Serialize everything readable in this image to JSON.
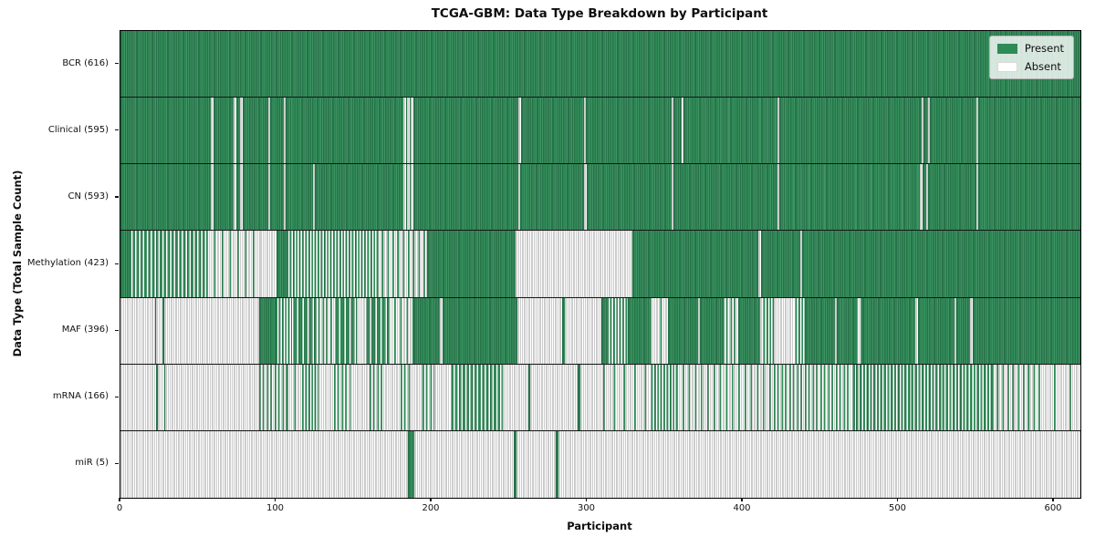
{
  "title": "TCGA-GBM: Data Type Breakdown by Participant",
  "axes": {
    "x_label": "Participant",
    "y_label": "Data Type (Total Sample Count)",
    "x_ticks": [
      0,
      100,
      200,
      300,
      400,
      500,
      600
    ]
  },
  "legend": {
    "items": [
      {
        "label": "Present",
        "color": "#2e8b57"
      },
      {
        "label": "Absent",
        "color": "#ffffff"
      }
    ]
  },
  "colors": {
    "present": "#2e8b57",
    "present_edge": "#1e5e3b",
    "present_light": "#4f9d72",
    "absent": "#ffffff",
    "absent_edge": "#9a9a9a",
    "row_divider": "#161616"
  },
  "chart_data": {
    "type": "heatmap",
    "title": "TCGA-GBM: Data Type Breakdown by Participant",
    "xlabel": "Participant",
    "ylabel": "Data Type (Total Sample Count)",
    "x_range": [
      0,
      617
    ],
    "legend_entries": [
      "Present",
      "Absent"
    ],
    "legend_position": "upper right",
    "grid": false,
    "note": "segments are [start_participant, end_participant, type]; type is present, absent, or mixNN where NN is approx percent present within the span",
    "rows": [
      {
        "name": "BCR",
        "label": "BCR (616)",
        "total": 616,
        "segments": [
          [
            0,
            617,
            "present"
          ]
        ]
      },
      {
        "name": "Clinical",
        "label": "Clinical (595)",
        "total": 595,
        "segments": [
          [
            0,
            58,
            "present"
          ],
          [
            58,
            59.8,
            "absent"
          ],
          [
            59.8,
            73,
            "present"
          ],
          [
            73,
            74.3,
            "absent"
          ],
          [
            74.3,
            77,
            "present"
          ],
          [
            77,
            78.3,
            "absent"
          ],
          [
            78.3,
            95,
            "present"
          ],
          [
            95,
            96.3,
            "absent"
          ],
          [
            96.3,
            105,
            "present"
          ],
          [
            105,
            106.3,
            "absent"
          ],
          [
            106.3,
            182,
            "present"
          ],
          [
            182,
            183.3,
            "absent"
          ],
          [
            183.3,
            184.3,
            "present"
          ],
          [
            184.3,
            185.8,
            "absent"
          ],
          [
            185.8,
            186.8,
            "present"
          ],
          [
            186.8,
            188.3,
            "absent"
          ],
          [
            188.3,
            256,
            "present"
          ],
          [
            256,
            257.3,
            "absent"
          ],
          [
            257.3,
            298,
            "present"
          ],
          [
            298,
            299,
            "absent"
          ],
          [
            299,
            354,
            "present"
          ],
          [
            354,
            355.3,
            "absent"
          ],
          [
            355.3,
            361,
            "present"
          ],
          [
            361,
            362,
            "absent"
          ],
          [
            362,
            422,
            "present"
          ],
          [
            422,
            423.3,
            "absent"
          ],
          [
            423.3,
            515,
            "present"
          ],
          [
            515,
            516.3,
            "absent"
          ],
          [
            516.3,
            519,
            "present"
          ],
          [
            519,
            520.3,
            "absent"
          ],
          [
            520.3,
            550,
            "present"
          ],
          [
            550,
            551.3,
            "absent"
          ],
          [
            551.3,
            617,
            "present"
          ]
        ]
      },
      {
        "name": "CN",
        "label": "CN (593)",
        "total": 593,
        "segments": [
          [
            0,
            58,
            "present"
          ],
          [
            58,
            59.8,
            "absent"
          ],
          [
            59.8,
            73,
            "present"
          ],
          [
            73,
            74.3,
            "absent"
          ],
          [
            74.3,
            77,
            "present"
          ],
          [
            77,
            78.3,
            "absent"
          ],
          [
            78.3,
            95,
            "present"
          ],
          [
            95,
            96.3,
            "absent"
          ],
          [
            96.3,
            105,
            "present"
          ],
          [
            105,
            106.3,
            "absent"
          ],
          [
            106.3,
            124,
            "present"
          ],
          [
            124,
            125,
            "absent"
          ],
          [
            125,
            182,
            "present"
          ],
          [
            182,
            183.3,
            "absent"
          ],
          [
            183.3,
            184.3,
            "present"
          ],
          [
            184.3,
            185.8,
            "absent"
          ],
          [
            185.8,
            186.8,
            "present"
          ],
          [
            186.8,
            188.3,
            "absent"
          ],
          [
            188.3,
            256,
            "present"
          ],
          [
            256,
            257,
            "absent"
          ],
          [
            257,
            298,
            "present"
          ],
          [
            298,
            299.5,
            "absent"
          ],
          [
            299.5,
            354,
            "present"
          ],
          [
            354,
            355.3,
            "absent"
          ],
          [
            355.3,
            422,
            "present"
          ],
          [
            422,
            423.3,
            "absent"
          ],
          [
            423.3,
            514,
            "present"
          ],
          [
            514,
            515.3,
            "absent"
          ],
          [
            515.3,
            518,
            "present"
          ],
          [
            518,
            519.3,
            "absent"
          ],
          [
            519.3,
            550,
            "present"
          ],
          [
            550,
            551.3,
            "absent"
          ],
          [
            551.3,
            617,
            "present"
          ]
        ]
      },
      {
        "name": "Methylation",
        "label": "Methylation (423)",
        "total": 423,
        "segments": [
          [
            0,
            7,
            "present"
          ],
          [
            7,
            55,
            "mix60"
          ],
          [
            55,
            90,
            "mix20"
          ],
          [
            90,
            100,
            "absent"
          ],
          [
            100,
            108,
            "present"
          ],
          [
            108,
            165,
            "mix50"
          ],
          [
            165,
            197,
            "mix30"
          ],
          [
            197,
            254,
            "present"
          ],
          [
            254,
            329,
            "absent"
          ],
          [
            329,
            410,
            "present"
          ],
          [
            410,
            411.5,
            "absent"
          ],
          [
            411.5,
            437,
            "present"
          ],
          [
            437,
            438.2,
            "absent"
          ],
          [
            438.2,
            617,
            "present"
          ]
        ]
      },
      {
        "name": "MAF",
        "label": "MAF (396)",
        "total": 396,
        "segments": [
          [
            0,
            22,
            "absent"
          ],
          [
            22,
            23,
            "present"
          ],
          [
            23,
            27,
            "absent"
          ],
          [
            27,
            28,
            "present"
          ],
          [
            28,
            89,
            "absent"
          ],
          [
            89,
            101,
            "present"
          ],
          [
            101,
            110,
            "mix50"
          ],
          [
            110,
            125,
            "mix70"
          ],
          [
            125,
            137,
            "mix40"
          ],
          [
            137,
            152,
            "mix70"
          ],
          [
            152,
            157,
            "absent"
          ],
          [
            157,
            172,
            "mix70"
          ],
          [
            172,
            188,
            "mix25"
          ],
          [
            188,
            205,
            "present"
          ],
          [
            205,
            207,
            "absent"
          ],
          [
            207,
            255,
            "present"
          ],
          [
            255,
            284,
            "absent"
          ],
          [
            284,
            285.5,
            "present"
          ],
          [
            285.5,
            309,
            "absent"
          ],
          [
            309,
            314,
            "present"
          ],
          [
            314,
            326,
            "mix50"
          ],
          [
            326,
            340,
            "present"
          ],
          [
            340,
            352,
            "mix15"
          ],
          [
            352,
            371,
            "present"
          ],
          [
            371,
            372.5,
            "absent"
          ],
          [
            372.5,
            387,
            "present"
          ],
          [
            387,
            397,
            "mix40"
          ],
          [
            397,
            411,
            "present"
          ],
          [
            411,
            412.5,
            "absent"
          ],
          [
            412.5,
            420,
            "mix50"
          ],
          [
            420,
            433,
            "absent"
          ],
          [
            433,
            440,
            "mix50"
          ],
          [
            440,
            459,
            "present"
          ],
          [
            459,
            460.5,
            "absent"
          ],
          [
            460.5,
            473,
            "present"
          ],
          [
            473,
            477,
            "mix30"
          ],
          [
            477,
            511,
            "present"
          ],
          [
            511,
            512.5,
            "absent"
          ],
          [
            512.5,
            536,
            "present"
          ],
          [
            536,
            537.5,
            "absent"
          ],
          [
            537.5,
            546,
            "present"
          ],
          [
            546,
            548,
            "absent"
          ],
          [
            548,
            617,
            "present"
          ]
        ]
      },
      {
        "name": "mRNA",
        "label": "mRNA (166)",
        "total": 166,
        "segments": [
          [
            0,
            23,
            "absent"
          ],
          [
            23,
            24,
            "present"
          ],
          [
            24,
            28,
            "absent"
          ],
          [
            28,
            29,
            "present"
          ],
          [
            29,
            89,
            "absent"
          ],
          [
            89,
            107,
            "mix40"
          ],
          [
            107,
            118,
            "mix20"
          ],
          [
            118,
            127,
            "mix50"
          ],
          [
            127,
            137,
            "absent"
          ],
          [
            137,
            148,
            "mix40"
          ],
          [
            148,
            160,
            "absent"
          ],
          [
            160,
            170,
            "mix40"
          ],
          [
            170,
            180,
            "absent"
          ],
          [
            180,
            186,
            "mix40"
          ],
          [
            186,
            194,
            "absent"
          ],
          [
            194,
            202,
            "mix40"
          ],
          [
            202,
            212,
            "absent"
          ],
          [
            212,
            246,
            "mix60"
          ],
          [
            246,
            262,
            "absent"
          ],
          [
            262,
            263.5,
            "present"
          ],
          [
            263.5,
            294,
            "absent"
          ],
          [
            294,
            295.5,
            "present"
          ],
          [
            295.5,
            310,
            "absent"
          ],
          [
            310,
            340,
            "mix15"
          ],
          [
            340,
            357,
            "mix50"
          ],
          [
            357,
            420,
            "mix25"
          ],
          [
            420,
            470,
            "mix40"
          ],
          [
            470,
            560,
            "mix55"
          ],
          [
            560,
            590,
            "mix30"
          ],
          [
            590,
            617,
            "mix10"
          ]
        ]
      },
      {
        "name": "miR",
        "label": "miR (5)",
        "total": 5,
        "segments": [
          [
            0,
            185,
            "absent"
          ],
          [
            185,
            189,
            "present"
          ],
          [
            189,
            253,
            "absent"
          ],
          [
            253,
            254.5,
            "present"
          ],
          [
            254.5,
            280,
            "absent"
          ],
          [
            280,
            281.5,
            "present"
          ],
          [
            281.5,
            617,
            "absent"
          ]
        ]
      }
    ]
  }
}
